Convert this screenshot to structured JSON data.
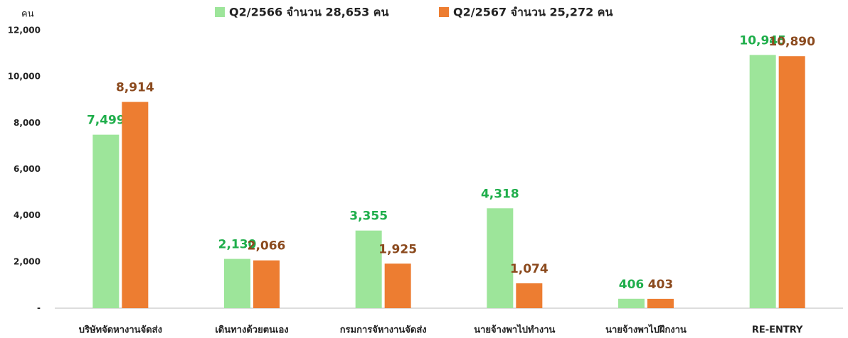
{
  "chart_data": {
    "type": "bar",
    "y_axis_label": "คน",
    "categories": [
      "บริษัทจัดหางานจัดส่ง",
      "เดินทางด้วยตนเอง",
      "กรมการจัหางานจัดส่ง",
      "นายจ้างพาไปทำงาน",
      "นายจ้างพาไปฝึกงาน",
      "RE-ENTRY"
    ],
    "series": [
      {
        "name": "Q2/2566 จำนวน 28,653 คน",
        "color": "#9de59a",
        "label_color": "#1fae4b",
        "values": [
          7499,
          2130,
          3355,
          4318,
          406,
          10945
        ],
        "value_labels": [
          "7,499",
          "2,130",
          "3,355",
          "4,318",
          "406",
          "10,945"
        ]
      },
      {
        "name": "Q2/2567 จำนวน 25,272 คน",
        "color": "#ed7d31",
        "label_color": "#8b4a1e",
        "values": [
          8914,
          2066,
          1925,
          1074,
          403,
          10890
        ],
        "value_labels": [
          "8,914",
          "2,066",
          "1,925",
          "1,074",
          "403",
          "10,890"
        ]
      }
    ],
    "ylim": [
      0,
      12000
    ],
    "yticks": [
      {
        "value": 0,
        "label": "-"
      },
      {
        "value": 2000,
        "label": "2,000"
      },
      {
        "value": 4000,
        "label": "4,000"
      },
      {
        "value": 6000,
        "label": "6,000"
      },
      {
        "value": 8000,
        "label": "8,000"
      },
      {
        "value": 10000,
        "label": "10,000"
      },
      {
        "value": 12000,
        "label": "12,000"
      }
    ],
    "grid": false
  }
}
